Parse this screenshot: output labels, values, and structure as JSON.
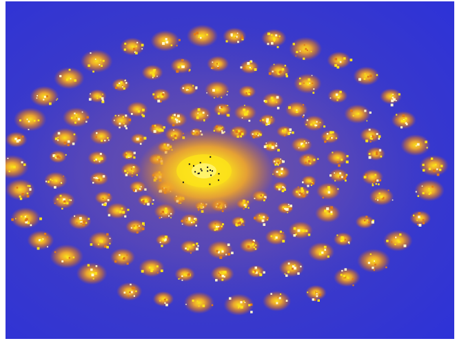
{
  "image": {
    "subject": "fractal-spiral-icon",
    "colors": {
      "background_outer": "#2d32d8",
      "background_inner": "#4a43b8",
      "haze": "#8a5aa0",
      "cluster_orange": "#e07a1a",
      "cluster_gold": "#f2a928",
      "cluster_yellow": "#fbe21a",
      "core_bright": "#fff36a",
      "sparkle": "#fff8d0",
      "core_dot": "#0a0a1a"
    }
  }
}
